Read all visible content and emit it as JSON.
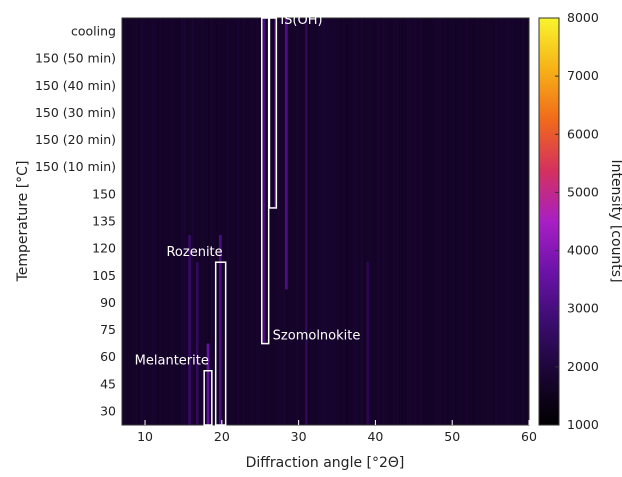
{
  "chart_data": {
    "type": "heatmap",
    "xlabel": "Diffraction angle [°2Θ]",
    "ylabel": "Temperature [°C]",
    "colorbar_label": "Intensity [counts]",
    "xlim": [
      7,
      60
    ],
    "xticks": [
      10,
      20,
      30,
      40,
      50,
      60
    ],
    "ylabels": [
      "30",
      "45",
      "60",
      "75",
      "90",
      "105",
      "120",
      "135",
      "150",
      "150 (10 min)",
      "150 (20 min)",
      "150 (30 min)",
      "150 (40 min)",
      "150 (50 min)",
      "cooling"
    ],
    "colorbar_range": [
      1000,
      8000
    ],
    "colorbar_ticks": [
      1000,
      2000,
      3000,
      4000,
      5000,
      6000,
      7000,
      8000
    ],
    "colormap": [
      "#000000",
      "#1a0533",
      "#3a0c6e",
      "#6b12a8",
      "#a81fc4",
      "#d4315e",
      "#f06a1b",
      "#f7b217",
      "#f8f52e"
    ],
    "background_intensity": 1700,
    "peaks": [
      {
        "x": 15.8,
        "intensity": 2600,
        "extent": [
          0,
          7
        ]
      },
      {
        "x": 16.8,
        "intensity": 2500,
        "extent": [
          0,
          6
        ]
      },
      {
        "x": 18.2,
        "intensity": 3500,
        "extent": [
          0,
          3
        ]
      },
      {
        "x": 19.8,
        "intensity": 3000,
        "extent": [
          0,
          7
        ]
      },
      {
        "x": 25.5,
        "intensity": 3000,
        "extent": [
          3,
          15
        ]
      },
      {
        "x": 27.0,
        "intensity": 2900,
        "extent": [
          8,
          15
        ]
      },
      {
        "x": 28.4,
        "intensity": 3100,
        "extent": [
          5,
          15
        ]
      },
      {
        "x": 31.0,
        "intensity": 2400,
        "extent": [
          0,
          15
        ]
      },
      {
        "x": 39.0,
        "intensity": 2300,
        "extent": [
          0,
          6
        ]
      }
    ],
    "annotations": [
      {
        "label": "Melanterite",
        "x_range": [
          17.7,
          18.7
        ],
        "y_range": [
          0,
          2
        ]
      },
      {
        "label": "Rozenite",
        "x_range": [
          19.2,
          20.5
        ],
        "y_range": [
          0,
          6
        ]
      },
      {
        "label": "Szomolnokite",
        "x_range": [
          25.2,
          26.1
        ],
        "y_range": [
          3,
          15
        ]
      },
      {
        "label": "IS(OH)",
        "x_range": [
          26.2,
          27.1
        ],
        "y_range": [
          8,
          15
        ]
      }
    ]
  }
}
